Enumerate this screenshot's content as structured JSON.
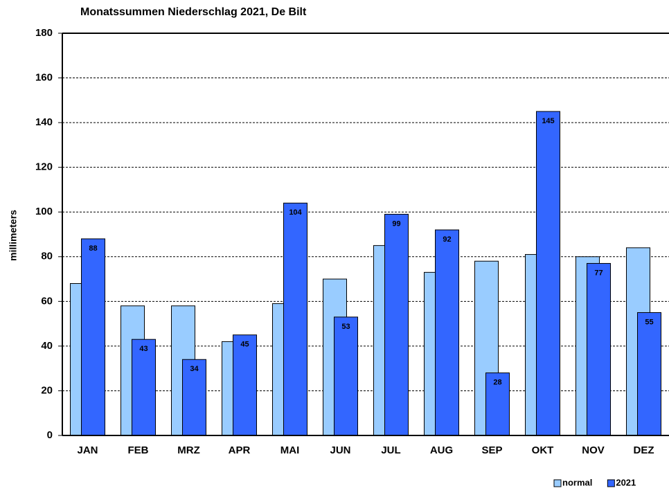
{
  "chart_data": {
    "type": "bar",
    "title": "Monatssummen Niederschlag 2021, De Bilt",
    "ylabel": "millimeters",
    "categories": [
      "JAN",
      "FEB",
      "MRZ",
      "APR",
      "MAI",
      "JUN",
      "JUL",
      "AUG",
      "SEP",
      "OKT",
      "NOV",
      "DEZ"
    ],
    "series": [
      {
        "name": "normal",
        "color": "#99ccff",
        "values": [
          68,
          58,
          58,
          42,
          59,
          70,
          85,
          73,
          78,
          81,
          80,
          84
        ]
      },
      {
        "name": "2021",
        "color": "#3366ff",
        "show_values": true,
        "values": [
          88,
          43,
          34,
          45,
          104,
          53,
          99,
          92,
          28,
          145,
          77,
          55
        ]
      }
    ],
    "ylim": [
      0,
      180
    ],
    "yticks": [
      0,
      20,
      40,
      60,
      80,
      100,
      120,
      140,
      160,
      180
    ],
    "grid": true,
    "legend": "bottom-right"
  }
}
